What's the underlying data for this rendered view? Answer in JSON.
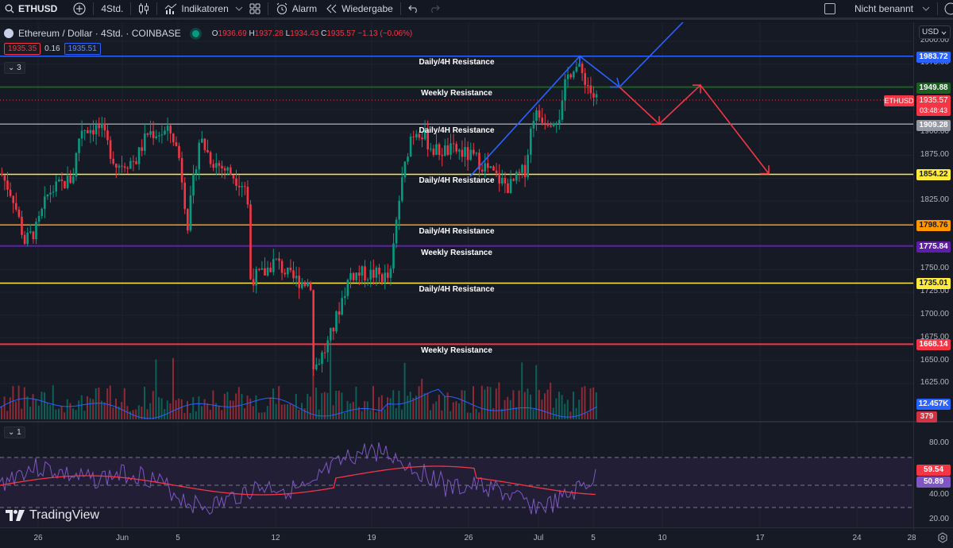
{
  "toolbar": {
    "symbol": "ETHUSD",
    "interval": "4Std.",
    "indicators_label": "Indikatoren",
    "alert_label": "Alarm",
    "replay_label": "Wiedergabe",
    "layout_name": "Nicht benannt"
  },
  "legend": {
    "title": "Ethereum / Dollar · 4Std. · COINBASE",
    "open_k": "O",
    "open": "1936.69",
    "high_k": "H",
    "high": "1937.28",
    "low_k": "L",
    "low": "1934.43",
    "close_k": "C",
    "close": "1935.57",
    "change": "−1.13 (−0.06%)",
    "bid": "1935.35",
    "spread": "0.16",
    "ask": "1935.51",
    "collapsed_count": "3"
  },
  "rsi_pane": {
    "collapsed_count": "1"
  },
  "price_axis": {
    "currency": "USD",
    "ticks": [
      "2000.00",
      "1975.00",
      "1900.00",
      "1875.00",
      "1825.00",
      "1750.00",
      "1725.00",
      "1700.00",
      "1675.00",
      "1650.00",
      "1625.00"
    ],
    "rsi_ticks": [
      "80.00",
      "40.00",
      "20.00"
    ],
    "labels": {
      "l1983": "1983.72",
      "l1949": "1949.88",
      "symbol_tag": "ETHUSD",
      "last": "1935.57",
      "countdown": "03:48:43",
      "l1909": "1909.28",
      "l1854": "1854.22",
      "l1798": "1798.76",
      "l1775": "1775.84",
      "l1735": "1735.01",
      "l1668": "1668.14",
      "vol_ma": "12.457K",
      "vol": "379",
      "rsi_ma": "59.54",
      "rsi": "50.89"
    }
  },
  "time_axis": {
    "ticks": [
      "26",
      "Jun",
      "5",
      "12",
      "19",
      "26",
      "Jul",
      "5",
      "10",
      "17",
      "24",
      "28"
    ]
  },
  "annotations": {
    "a1": "Daily/4H Resistance",
    "a2": "Weekly Resistance",
    "a3": "Daily/4H Resistance",
    "a4": "Daily/4H Resistance",
    "a5": "Daily/4H Resistance",
    "a6": "Weekly Resistance",
    "a7": "Daily/4H Resistance",
    "a8": "Weekly Resistance"
  },
  "branding": {
    "logo_text": "TradingView"
  },
  "colors": {
    "up": "#089981",
    "down": "#f23645",
    "line_1983": "#2962ff",
    "line_1949": "#1b5e20",
    "line_1909": "#9598a1",
    "line_1854": "#ffeb3b",
    "line_1798": "#ff9800",
    "line_1775": "#5e1ea8",
    "line_1735": "#ffeb3b",
    "line_1668": "#f23645",
    "rsi": "#7e57c2",
    "rsi_ma": "#f23645"
  }
}
